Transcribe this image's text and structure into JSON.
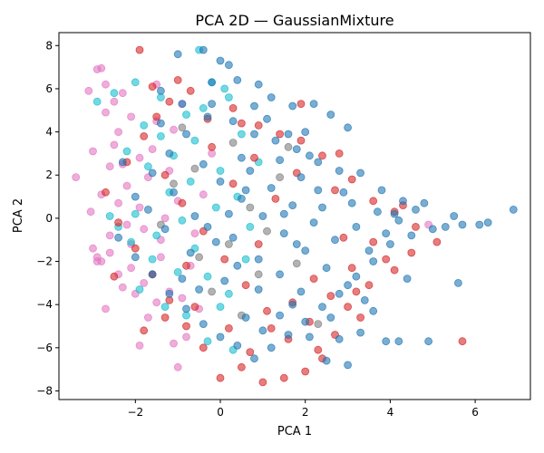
{
  "chart_data": {
    "type": "scatter",
    "title": "PCA 2D — GaussianMixture",
    "xlabel": "PCA 1",
    "ylabel": "PCA 2",
    "xlim": [
      -3.8,
      7.3
    ],
    "ylim": [
      -8.4,
      8.6
    ],
    "xticks": [
      -2,
      0,
      2,
      4,
      6
    ],
    "yticks": [
      -8,
      -6,
      -4,
      -2,
      0,
      2,
      4,
      6,
      8
    ],
    "grid": false,
    "legend": "none",
    "colors": {
      "blue": "#1f77b4",
      "red": "#d62728",
      "pink": "#e377c2",
      "cyan": "#17becf",
      "gray": "#7f7f7f"
    },
    "series": [
      {
        "color": "#e377c2",
        "points": [
          [
            -3.4,
            1.9
          ],
          [
            -3.1,
            5.9
          ],
          [
            -3.0,
            3.1
          ],
          [
            -3.05,
            0.3
          ],
          [
            -2.9,
            6.9
          ],
          [
            -2.8,
            6.95
          ],
          [
            -2.7,
            6.2
          ],
          [
            -2.9,
            -1.8
          ],
          [
            -2.8,
            -2.0
          ],
          [
            -2.6,
            -1.6
          ],
          [
            -2.7,
            4.9
          ],
          [
            -2.5,
            5.4
          ],
          [
            -2.4,
            4.0
          ],
          [
            -2.3,
            2.5
          ],
          [
            -2.2,
            1.5
          ],
          [
            -2.6,
            -0.8
          ],
          [
            -2.4,
            -2.6
          ],
          [
            -2.3,
            -3.2
          ],
          [
            -2.0,
            -3.5
          ],
          [
            -1.8,
            -3.0
          ],
          [
            -2.1,
            -1.2
          ],
          [
            -1.9,
            0.5
          ],
          [
            -1.7,
            1.9
          ],
          [
            -1.6,
            3.2
          ],
          [
            -1.5,
            4.5
          ],
          [
            -2.7,
            -4.2
          ],
          [
            -1.9,
            -5.9
          ],
          [
            -1.7,
            -4.6
          ],
          [
            -1.5,
            -3.9
          ],
          [
            -1.4,
            -1.8
          ],
          [
            -1.3,
            0.0
          ],
          [
            -1.2,
            2.2
          ],
          [
            -1.1,
            4.1
          ],
          [
            -0.9,
            5.3
          ],
          [
            -1.5,
            6.2
          ],
          [
            -1.1,
            -5.8
          ],
          [
            -1.0,
            -6.9
          ],
          [
            -0.8,
            -5.5
          ],
          [
            -0.5,
            -4.2
          ],
          [
            -0.7,
            -2.2
          ],
          [
            -0.4,
            1.1
          ],
          [
            -0.2,
            3.0
          ],
          [
            -2.6,
            2.4
          ],
          [
            -2.1,
            4.7
          ],
          [
            -1.8,
            -0.5
          ],
          [
            -2.4,
            0.7
          ],
          [
            -2.2,
            -0.3
          ],
          [
            -1.9,
            2.8
          ],
          [
            -1.4,
            -1.0
          ],
          [
            -2.9,
            -2.0
          ],
          [
            -3.0,
            -1.4
          ],
          [
            -2.8,
            1.1
          ],
          [
            -2.5,
            3.4
          ],
          [
            -2.1,
            -2.3
          ],
          [
            -1.6,
            -2.6
          ],
          [
            -1.2,
            -3.4
          ],
          [
            -0.9,
            -3.7
          ],
          [
            -1.0,
            0.8
          ],
          [
            -0.6,
            -0.7
          ],
          [
            -2.3,
            5.8
          ],
          [
            4.9,
            -0.3
          ]
        ]
      },
      {
        "color": "#17becf",
        "points": [
          [
            -2.9,
            5.4
          ],
          [
            -2.5,
            5.8
          ],
          [
            -2.0,
            6.3
          ],
          [
            -1.4,
            5.6
          ],
          [
            -0.8,
            4.8
          ],
          [
            -0.2,
            6.3
          ],
          [
            0.2,
            5.6
          ],
          [
            -0.5,
            7.8
          ],
          [
            -2.2,
            3.1
          ],
          [
            -1.7,
            2.4
          ],
          [
            -1.2,
            1.2
          ],
          [
            -0.9,
            -0.1
          ],
          [
            -0.6,
            -1.4
          ],
          [
            -0.3,
            -2.7
          ],
          [
            0.0,
            -4.1
          ],
          [
            -1.6,
            -1.9
          ],
          [
            -2.4,
            -0.4
          ],
          [
            -2.0,
            0.2
          ],
          [
            -1.5,
            -0.8
          ],
          [
            -1.1,
            2.9
          ],
          [
            -0.6,
            3.6
          ],
          [
            0.0,
            2.2
          ],
          [
            0.4,
            1.0
          ],
          [
            0.7,
            -0.4
          ],
          [
            -0.3,
            -5.7
          ],
          [
            0.3,
            -6.1
          ],
          [
            -0.8,
            -4.5
          ],
          [
            -1.9,
            -3.3
          ],
          [
            -1.3,
            -4.1
          ],
          [
            -0.1,
            0.5
          ],
          [
            0.5,
            3.9
          ],
          [
            0.9,
            2.6
          ],
          [
            -2.6,
            0.1
          ],
          [
            -1.8,
            4.3
          ],
          [
            -0.4,
            5.1
          ],
          [
            0.1,
            6.0
          ],
          [
            -1.0,
            -2.5
          ],
          [
            -0.7,
            1.7
          ],
          [
            -2.1,
            -1.1
          ],
          [
            -1.4,
            3.8
          ],
          [
            0.2,
            -3.5
          ],
          [
            0.6,
            -1.9
          ]
        ]
      },
      {
        "color": "#7f7f7f",
        "points": [
          [
            -1.1,
            1.6
          ],
          [
            -0.6,
            2.3
          ],
          [
            0.2,
            -1.2
          ],
          [
            0.7,
            0.5
          ],
          [
            1.1,
            -0.6
          ],
          [
            -0.2,
            -3.4
          ],
          [
            0.5,
            -4.5
          ],
          [
            -0.9,
            4.2
          ],
          [
            0.3,
            3.5
          ],
          [
            1.4,
            1.9
          ],
          [
            1.8,
            -2.1
          ],
          [
            2.3,
            -4.9
          ],
          [
            -0.5,
            -1.8
          ],
          [
            0.9,
            -2.6
          ],
          [
            1.6,
            3.3
          ],
          [
            -1.4,
            -0.3
          ]
        ]
      },
      {
        "color": "#d62728",
        "points": [
          [
            -1.9,
            7.8
          ],
          [
            -1.6,
            6.1
          ],
          [
            -1.2,
            5.4
          ],
          [
            -0.7,
            5.9
          ],
          [
            -0.3,
            4.6
          ],
          [
            0.3,
            5.1
          ],
          [
            0.9,
            4.3
          ],
          [
            1.4,
            3.9
          ],
          [
            1.9,
            3.6
          ],
          [
            2.4,
            2.9
          ],
          [
            2.8,
            3.0
          ],
          [
            3.1,
            1.8
          ],
          [
            3.6,
            0.8
          ],
          [
            4.1,
            0.3
          ],
          [
            4.6,
            -0.4
          ],
          [
            5.1,
            -1.1
          ],
          [
            5.7,
            -5.7
          ],
          [
            4.1,
            -2.4
          ],
          [
            3.5,
            -3.1
          ],
          [
            3.0,
            -4.1
          ],
          [
            2.7,
            -5.4
          ],
          [
            2.4,
            -6.5
          ],
          [
            2.0,
            -7.1
          ],
          [
            1.5,
            -7.4
          ],
          [
            1.0,
            -7.6
          ],
          [
            0.5,
            -6.9
          ],
          [
            0.0,
            -7.4
          ],
          [
            -0.4,
            -6.0
          ],
          [
            -0.8,
            -5.0
          ],
          [
            -1.2,
            -3.8
          ],
          [
            -1.6,
            -2.6
          ],
          [
            -2.0,
            -1.4
          ],
          [
            -2.4,
            -0.2
          ],
          [
            -2.7,
            1.2
          ],
          [
            -2.2,
            2.6
          ],
          [
            -1.8,
            3.8
          ],
          [
            -1.3,
            2.0
          ],
          [
            -0.9,
            0.7
          ],
          [
            -0.4,
            -0.6
          ],
          [
            0.1,
            -1.9
          ],
          [
            0.6,
            -3.1
          ],
          [
            1.1,
            -4.3
          ],
          [
            1.6,
            -5.6
          ],
          [
            2.1,
            -4.8
          ],
          [
            2.6,
            -3.6
          ],
          [
            3.1,
            -2.3
          ],
          [
            3.6,
            -1.1
          ],
          [
            1.3,
            0.9
          ],
          [
            1.8,
            2.1
          ],
          [
            0.8,
            2.8
          ],
          [
            0.3,
            1.6
          ],
          [
            -0.2,
            3.3
          ],
          [
            -0.8,
            -2.2
          ],
          [
            -1.3,
            -4.6
          ],
          [
            -1.8,
            -5.2
          ],
          [
            0.2,
            -5.1
          ],
          [
            0.7,
            -6.2
          ],
          [
            1.2,
            -5.1
          ],
          [
            2.9,
            -0.9
          ],
          [
            3.9,
            -1.9
          ],
          [
            4.5,
            -1.6
          ],
          [
            4.3,
            0.6
          ],
          [
            0.9,
            -1.2
          ],
          [
            -1.5,
            4.7
          ],
          [
            -2.5,
            -2.7
          ],
          [
            2.2,
            -2.8
          ],
          [
            3.3,
            -4.6
          ],
          [
            1.7,
            -3.9
          ],
          [
            -0.6,
            -4.1
          ],
          [
            2.7,
            1.3
          ],
          [
            -1.0,
            6.4
          ],
          [
            0.5,
            4.4
          ],
          [
            1.9,
            5.3
          ],
          [
            2.3,
            -6.1
          ],
          [
            3.2,
            -3.4
          ]
        ]
      },
      {
        "color": "#1f77b4",
        "points": [
          [
            -1.0,
            7.6
          ],
          [
            -0.4,
            7.8
          ],
          [
            0.0,
            7.3
          ],
          [
            0.2,
            7.1
          ],
          [
            -0.2,
            6.3
          ],
          [
            0.4,
            6.4
          ],
          [
            0.9,
            6.2
          ],
          [
            1.2,
            5.6
          ],
          [
            1.7,
            5.2
          ],
          [
            2.2,
            5.3
          ],
          [
            2.6,
            4.8
          ],
          [
            3.0,
            4.2
          ],
          [
            -1.4,
            5.9
          ],
          [
            -0.9,
            5.3
          ],
          [
            -0.3,
            4.7
          ],
          [
            0.3,
            4.5
          ],
          [
            0.8,
            3.9
          ],
          [
            1.3,
            3.6
          ],
          [
            1.8,
            3.2
          ],
          [
            2.3,
            2.6
          ],
          [
            2.8,
            2.2
          ],
          [
            3.3,
            2.1
          ],
          [
            3.8,
            1.3
          ],
          [
            4.3,
            0.8
          ],
          [
            4.8,
            0.7
          ],
          [
            5.3,
            -0.4
          ],
          [
            5.7,
            -0.3
          ],
          [
            6.1,
            -0.3
          ],
          [
            6.3,
            -0.2
          ],
          [
            6.9,
            0.4
          ],
          [
            5.5,
            0.1
          ],
          [
            5.0,
            -0.5
          ],
          [
            4.5,
            -0.8
          ],
          [
            4.0,
            -1.2
          ],
          [
            3.6,
            -2.0
          ],
          [
            3.2,
            -2.7
          ],
          [
            2.8,
            -3.5
          ],
          [
            2.4,
            -4.1
          ],
          [
            2.0,
            -4.8
          ],
          [
            1.6,
            -5.4
          ],
          [
            1.2,
            -6.0
          ],
          [
            0.8,
            -6.5
          ],
          [
            0.4,
            -5.9
          ],
          [
            0.0,
            -5.5
          ],
          [
            -0.4,
            -4.9
          ],
          [
            -0.8,
            -4.2
          ],
          [
            -1.2,
            -3.5
          ],
          [
            -1.6,
            -2.6
          ],
          [
            -2.0,
            -1.8
          ],
          [
            -2.4,
            -0.9
          ],
          [
            -2.0,
            1.0
          ],
          [
            -1.6,
            2.1
          ],
          [
            -1.2,
            3.0
          ],
          [
            -0.8,
            3.9
          ],
          [
            -0.4,
            2.5
          ],
          [
            0.0,
            1.7
          ],
          [
            0.5,
            0.9
          ],
          [
            1.0,
            0.1
          ],
          [
            1.5,
            -0.7
          ],
          [
            2.0,
            -1.5
          ],
          [
            2.5,
            -2.3
          ],
          [
            3.0,
            -3.1
          ],
          [
            3.4,
            -3.8
          ],
          [
            3.9,
            -5.7
          ],
          [
            4.2,
            -5.7
          ],
          [
            4.9,
            -5.7
          ],
          [
            5.6,
            -3.0
          ],
          [
            3.0,
            -6.8
          ],
          [
            2.5,
            -6.6
          ],
          [
            2.1,
            -5.5
          ],
          [
            1.4,
            -4.5
          ],
          [
            0.9,
            -3.3
          ],
          [
            0.4,
            -2.2
          ],
          [
            -0.1,
            -1.1
          ],
          [
            -0.6,
            0.1
          ],
          [
            -1.1,
            1.2
          ],
          [
            0.7,
            2.2
          ],
          [
            1.2,
            1.4
          ],
          [
            1.7,
            0.6
          ],
          [
            2.2,
            -0.2
          ],
          [
            2.7,
            -1.0
          ],
          [
            3.2,
            -0.4
          ],
          [
            3.7,
            0.3
          ],
          [
            4.2,
            -0.1
          ],
          [
            1.9,
            1.9
          ],
          [
            1.4,
            2.7
          ],
          [
            0.9,
            -1.9
          ],
          [
            1.4,
            -2.6
          ],
          [
            1.9,
            -3.4
          ],
          [
            2.4,
            0.5
          ],
          [
            2.9,
            1.2
          ],
          [
            3.5,
            -1.5
          ],
          [
            4.1,
            0.2
          ],
          [
            4.6,
            0.4
          ],
          [
            0.2,
            0.2
          ],
          [
            -0.3,
            -0.4
          ],
          [
            -0.7,
            -1.6
          ],
          [
            -1.3,
            -0.5
          ],
          [
            1.1,
            4.6
          ],
          [
            2.0,
            4.0
          ],
          [
            0.6,
            -4.6
          ],
          [
            1.7,
            -4.0
          ],
          [
            2.6,
            -4.6
          ],
          [
            3.3,
            -5.3
          ],
          [
            -0.5,
            -3.3
          ],
          [
            0.1,
            -2.9
          ],
          [
            1.5,
            0.2
          ],
          [
            2.3,
            1.3
          ],
          [
            3.1,
            0.7
          ],
          [
            0.8,
            5.2
          ],
          [
            -1.7,
            0.4
          ],
          [
            -2.3,
            2.6
          ],
          [
            -1.4,
            4.4
          ],
          [
            -0.9,
            -2.8
          ],
          [
            1.0,
            -5.2
          ],
          [
            2.8,
            -5.6
          ],
          [
            3.6,
            -4.3
          ],
          [
            4.4,
            -2.8
          ],
          [
            3.9,
            -0.7
          ],
          [
            0.3,
            -0.9
          ],
          [
            0.6,
            1.3
          ],
          [
            1.8,
            -1.2
          ],
          [
            2.1,
            2.9
          ],
          [
            -0.2,
            5.3
          ],
          [
            0.5,
            2.8
          ],
          [
            1.6,
            3.9
          ]
        ]
      }
    ]
  }
}
